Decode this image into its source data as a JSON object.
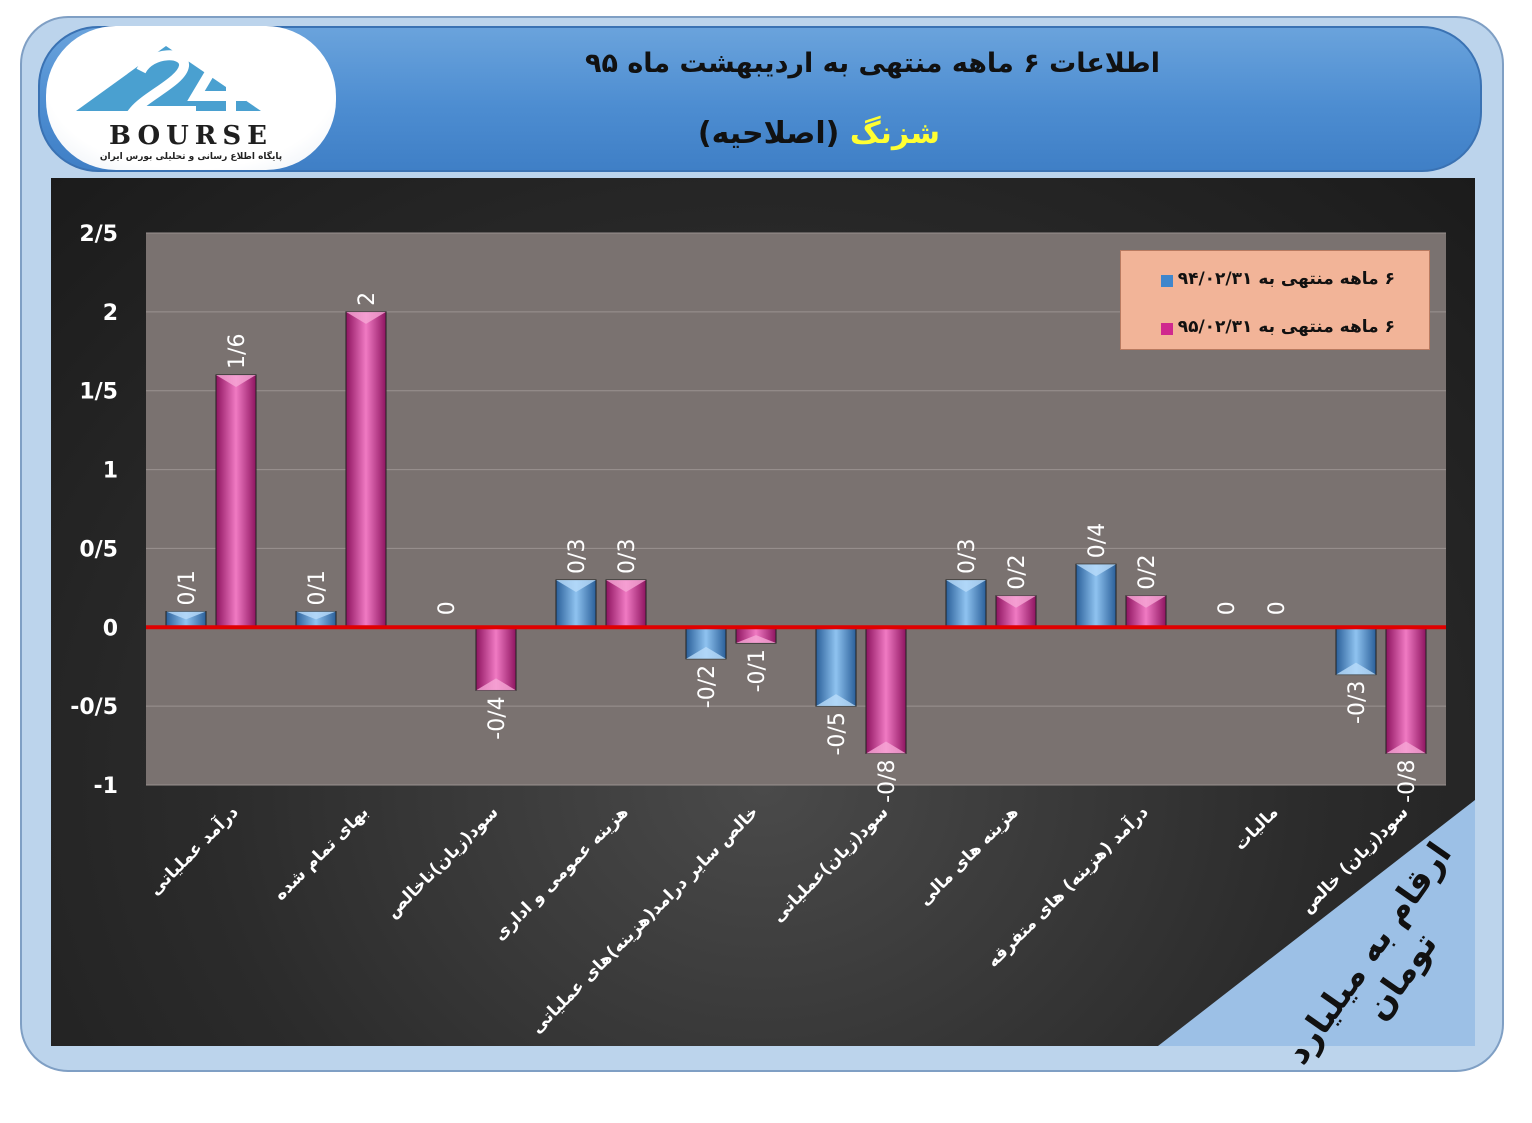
{
  "header": {
    "title": "اطلاعات ۶ ماهه منتهی به اردیبهشت ماه ۹۵",
    "company_highlight": "شزنگ",
    "company_rest": " (اصلاحیه)"
  },
  "logo": {
    "text": "BOURSE",
    "subtitle": "پایگاه اطلاع رسانی و تحلیلی بورس ایران"
  },
  "units_note": "ارقام به میلیارد تومان",
  "colors": {
    "series1": "#3f86cc",
    "series2": "#d0288e",
    "zero_line": "#e00000",
    "plot_bg": "#7a7270"
  },
  "chart_data": {
    "type": "bar",
    "categories": [
      "درآمد عملیاتی",
      "بهای تمام شده",
      "سود(زیان)ناخالص",
      "هزینه عمومی و اداری",
      "خالص سایر درامد(هزینه)های عملیاتی",
      "سود(زیان)عملیاتی",
      "هزینه های مالی",
      "درآمد (هزینه) های متفرقه",
      "مالیات",
      "سود(زیان) خالص"
    ],
    "series": [
      {
        "name": "۶ ماهه منتهی به ۹۴/۰۲/۳۱",
        "values": [
          0.1,
          0.1,
          0,
          0.3,
          -0.2,
          -0.5,
          0.3,
          0.4,
          0,
          -0.3
        ],
        "labels": [
          "0/1",
          "0/1",
          "0",
          "0/3",
          "-0/2",
          "-0/5",
          "0/3",
          "0/4",
          "0",
          "-0/3"
        ]
      },
      {
        "name": "۶ ماهه منتهی به ۹۵/۰۲/۳۱",
        "values": [
          1.6,
          2,
          -0.4,
          0.3,
          -0.1,
          -0.8,
          0.2,
          0.2,
          0,
          -0.8
        ],
        "labels": [
          "1/6",
          "2",
          "-0/4",
          "0/3",
          "-0/1",
          "-0/8",
          "0/2",
          "0/2",
          "0",
          "-0/8"
        ]
      }
    ],
    "ylim": [
      -1,
      2.5
    ],
    "yticks": [
      2.5,
      2,
      1.5,
      1,
      0.5,
      0,
      -0.5,
      -1
    ],
    "ytick_labels": [
      "2/5",
      "2",
      "1/5",
      "1",
      "0/5",
      "0",
      "-0/5",
      "-1"
    ],
    "grid": true,
    "legend": "top-right"
  }
}
